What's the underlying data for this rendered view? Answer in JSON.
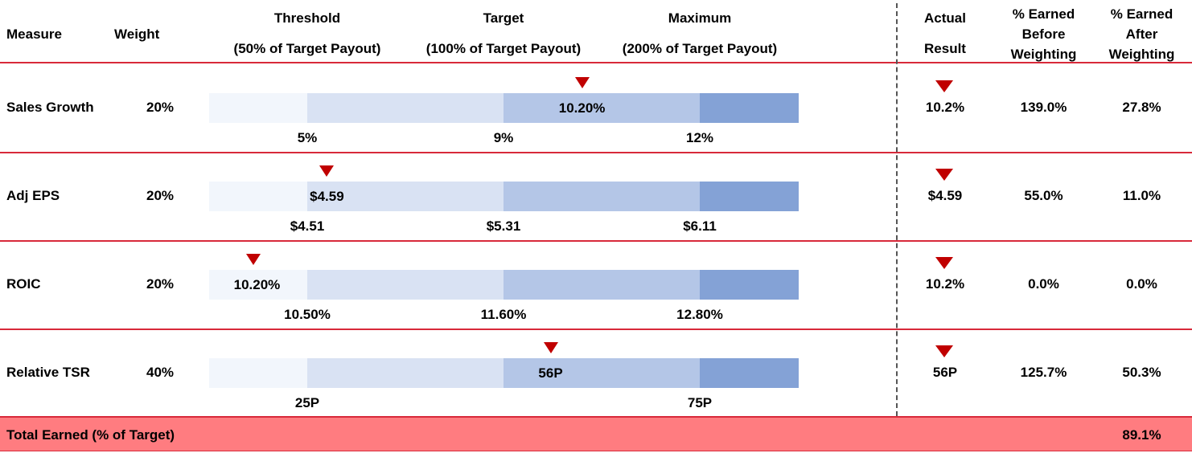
{
  "header": {
    "measure": "Measure",
    "weight": "Weight",
    "threshold": "Threshold",
    "threshold_sub": "(50% of Target Payout)",
    "target": "Target",
    "target_sub": "(100% of Target Payout)",
    "maximum": "Maximum",
    "maximum_sub": "(200% of Target Payout)",
    "actual_l1": "Actual",
    "actual_l2": "Result",
    "before_l1": "% Earned",
    "before_l2": "Before",
    "before_l3": "Weighting",
    "after_l1": "% Earned",
    "after_l2": "After",
    "after_l3": "Weighting"
  },
  "colors": {
    "below_threshold": "#f2f6fc",
    "threshold_to_target": "#d9e2f3",
    "target_to_max": "#b4c6e7",
    "above_max": "#84a2d6",
    "marker": "#c00000",
    "rule": "#d8293a",
    "total_fill": "#ff7c80"
  },
  "chart_data": {
    "type": "bar",
    "title": "",
    "scale_note": "each row's track: threshold, target and maximum levels with actual result marker",
    "rows": [
      {
        "measure": "Sales Growth",
        "weight": "20%",
        "threshold": "5%",
        "target": "9%",
        "maximum": "12%",
        "threshold_value": 5,
        "target_value": 9,
        "maximum_value": 12,
        "actual_value": 10.2,
        "actual_bar_label": "10.20%",
        "actual_result": "10.2%",
        "earned_before": "139.0%",
        "earned_after": "27.8%"
      },
      {
        "measure": "Adj EPS",
        "weight": "20%",
        "threshold": "$4.51",
        "target": "$5.31",
        "maximum": "$6.11",
        "threshold_value": 4.51,
        "target_value": 5.31,
        "maximum_value": 6.11,
        "actual_value": 4.59,
        "actual_bar_label": "$4.59",
        "actual_result": "$4.59",
        "earned_before": "55.0%",
        "earned_after": "11.0%"
      },
      {
        "measure": "ROIC",
        "weight": "20%",
        "threshold": "10.50%",
        "target": "11.60%",
        "maximum": "12.80%",
        "threshold_value": 10.5,
        "target_value": 11.6,
        "maximum_value": 12.8,
        "actual_value": 10.2,
        "actual_bar_label": "10.20%",
        "actual_result": "10.2%",
        "earned_before": "0.0%",
        "earned_after": "0.0%"
      },
      {
        "measure": "Relative TSR",
        "weight": "40%",
        "threshold": "25P",
        "target": "",
        "maximum": "75P",
        "threshold_value": 25,
        "target_value": 50,
        "maximum_value": 75,
        "actual_value": 56,
        "actual_bar_label": "56P",
        "actual_result": "56P",
        "earned_before": "125.7%",
        "earned_after": "50.3%"
      }
    ]
  },
  "total": {
    "label": "Total Earned (% of Target)",
    "value": "89.1%"
  }
}
